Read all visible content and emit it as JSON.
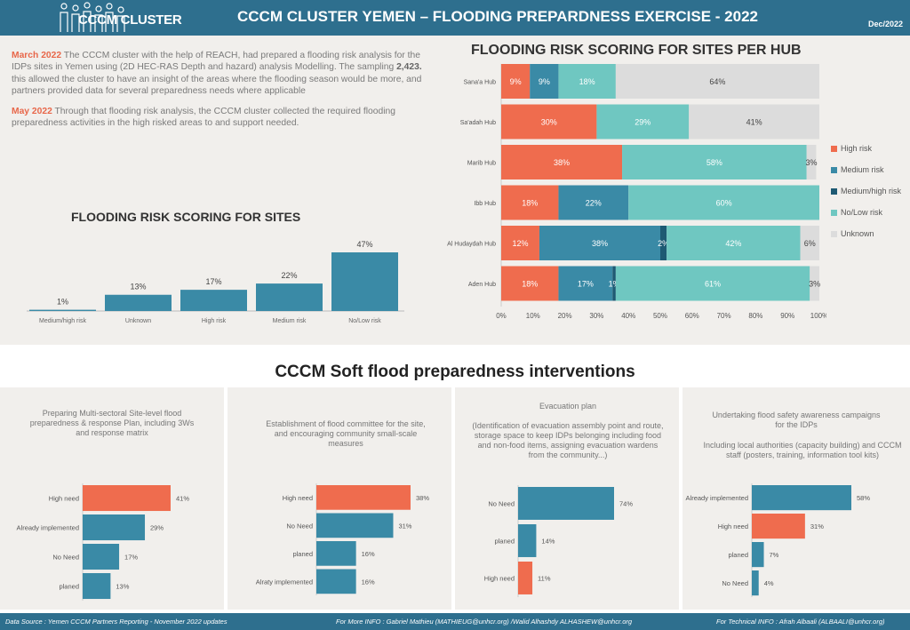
{
  "header": {
    "logo_text": "CCCM CLUSTER",
    "title": "CCCM CLUSTER YEMEN – FLOODING PREPARDNESS EXERCISE - 2022",
    "date": "Dec/2022"
  },
  "intro": {
    "p1_highlight": "March 2022",
    "p1_text_a": " The CCCM cluster with the help of REACH, had prepared a flooding risk analysis for the IDPs sites in Yemen using (2D HEC-RAS Depth and hazard) analysis Modelling. The sampling ",
    "p1_bold": "2,423.",
    "p1_text_b": " this allowed the cluster to have an insight of the areas where the flooding season would be more, and partners provided data for several preparedness needs where applicable",
    "p2_highlight": "May 2022",
    "p2_text": " Through that flooding risk analysis, the CCCM cluster collected the required flooding preparedness activities in the high risked areas to and support needed."
  },
  "colors": {
    "high": "#ef6c4e",
    "medium": "#3a8aa6",
    "mediumhigh": "#1e5a73",
    "nolow": "#6fc7c1",
    "unknown": "#dcdcdc",
    "panel_bg": "#f1efec",
    "header_bg": "#2e6f8e"
  },
  "icons": {
    "logo": "people-silhouettes-icon"
  },
  "chart_data": [
    {
      "id": "sites",
      "type": "bar",
      "title": "FLOODING RISK SCORING FOR SITES",
      "categories": [
        "Medium/high risk",
        "Unknown",
        "High risk",
        "Medium risk",
        "No/Low risk"
      ],
      "values": [
        1,
        13,
        17,
        22,
        47
      ],
      "value_labels": [
        "1%",
        "13%",
        "17%",
        "22%",
        "47%"
      ],
      "ylim": [
        0,
        47
      ]
    },
    {
      "id": "hub",
      "type": "bar",
      "stacked": true,
      "orientation": "horizontal",
      "title": "FLOODING RISK SCORING FOR SITES PER HUB",
      "categories": [
        "Sana'a Hub",
        "Sa'adah Hub",
        "Marib Hub",
        "Ibb Hub",
        "Al Hudaydah Hub",
        "Aden Hub"
      ],
      "series": [
        {
          "name": "High risk",
          "key": "high",
          "values": [
            9,
            30,
            38,
            18,
            12,
            18
          ],
          "labels": [
            "9%",
            "30%",
            "38%",
            "18%",
            "12%",
            "18%"
          ]
        },
        {
          "name": "Medium risk",
          "key": "medium",
          "values": [
            9,
            0,
            0,
            22,
            38,
            17
          ],
          "labels": [
            "9%",
            "",
            "",
            "22%",
            "38%",
            "17%"
          ]
        },
        {
          "name": "Medium/high risk",
          "key": "mediumhigh",
          "values": [
            0,
            0,
            0,
            0,
            2,
            1
          ],
          "labels": [
            "",
            "",
            "",
            "",
            "2%",
            "1%"
          ]
        },
        {
          "name": "No/Low risk",
          "key": "nolow",
          "values": [
            18,
            29,
            58,
            60,
            42,
            61
          ],
          "labels": [
            "18%",
            "29%",
            "58%",
            "60%",
            "42%",
            "61%"
          ]
        },
        {
          "name": "Unknown",
          "key": "unknown",
          "values": [
            64,
            41,
            3,
            0,
            6,
            3
          ],
          "labels": [
            "64%",
            "41%",
            "3%",
            "",
            "6%",
            "3%"
          ]
        }
      ],
      "xticks": [
        "0%",
        "10%",
        "20%",
        "30%",
        "40%",
        "50%",
        "60%",
        "70%",
        "80%",
        "90%",
        "100%"
      ],
      "xlim": [
        0,
        100
      ],
      "legend_position": "right"
    },
    {
      "id": "p1",
      "type": "bar",
      "orientation": "horizontal",
      "title": "Preparing Multi-sectoral Site-level flood preparedness & response Plan, including 3Ws and response matrix",
      "categories": [
        "High need",
        "Already implemented",
        "No Need",
        "planed"
      ],
      "values": [
        41,
        29,
        17,
        13
      ],
      "labels": [
        "41%",
        "29%",
        "17%",
        "13%"
      ],
      "colors": [
        "high",
        "medium",
        "medium",
        "medium"
      ],
      "xlim": [
        0,
        41
      ]
    },
    {
      "id": "p2",
      "type": "bar",
      "orientation": "horizontal",
      "title": "Establishment of flood committee for the site, and encouraging community small-scale measures",
      "categories": [
        "High need",
        "No Need",
        "planed",
        "Alraty implemented"
      ],
      "values": [
        38,
        31,
        16,
        16
      ],
      "labels": [
        "38%",
        "31%",
        "16%",
        "16%"
      ],
      "colors": [
        "high",
        "medium",
        "medium",
        "medium"
      ],
      "xlim": [
        0,
        38
      ]
    },
    {
      "id": "p3",
      "type": "bar",
      "orientation": "horizontal",
      "title": "Evacuation plan",
      "subtitle": "(Identification of evacuation assembly point and route, storage space to keep IDPs belonging including food and non-food items, assigning evacuation wardens from the community...)",
      "categories": [
        "No Need",
        "planed",
        "High need"
      ],
      "values": [
        74,
        14,
        11
      ],
      "labels": [
        "74%",
        "14%",
        "11%"
      ],
      "colors": [
        "medium",
        "medium",
        "high"
      ],
      "xlim": [
        0,
        74
      ]
    },
    {
      "id": "p4",
      "type": "bar",
      "orientation": "horizontal",
      "title": "Undertaking flood safety awareness campaigns for the IDPs",
      "subtitle": "Including local authorities (capacity building) and CCCM staff (posters, training, information tool kits)",
      "categories": [
        "Already implemented",
        "High need",
        "planed",
        "No Need"
      ],
      "values": [
        58,
        31,
        7,
        4
      ],
      "labels": [
        "58%",
        "31%",
        "7%",
        "4%"
      ],
      "colors": [
        "medium",
        "high",
        "medium",
        "medium"
      ],
      "xlim": [
        0,
        58
      ]
    }
  ],
  "soft_title": "CCCM Soft flood preparedness interventions",
  "footer": {
    "source": "Data Source : Yemen CCCM Partners Reporting - November 2022 updates",
    "info": "For More INFO : Gabriel Mathieu (MATHIEUG@unhcr.org) /Walid Alhashdy ALHASHEW@unhcr.org",
    "tech": "For Technical INFO : Afrah Albaali (ALBAALI@unhcr.org)"
  }
}
